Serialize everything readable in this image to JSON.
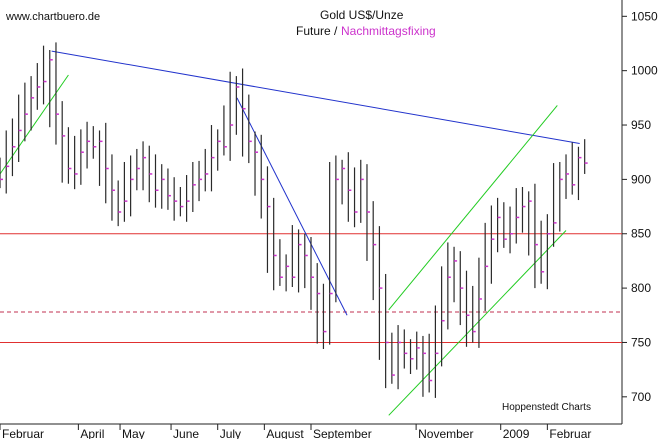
{
  "chart_data": {
    "type": "ohlc",
    "watermark": "www.chartbuero.de",
    "title": "Gold US$/Unze",
    "subtitle_a": "Future /",
    "subtitle_b": "Nachmittagsfixing",
    "credit": "Hoppenstedt Charts",
    "ylim": [
      675,
      1065
    ],
    "yticks": [
      700,
      750,
      800,
      850,
      900,
      950,
      1000,
      1050
    ],
    "xlim": [
      0,
      100
    ],
    "xticks": [
      {
        "x": 0,
        "label": "Februar"
      },
      {
        "x": 12.6,
        "label": "April"
      },
      {
        "x": 19.3,
        "label": "May"
      },
      {
        "x": 27.5,
        "label": "June"
      },
      {
        "x": 35.0,
        "label": "July"
      },
      {
        "x": 42.5,
        "label": "August"
      },
      {
        "x": 50.0,
        "label": "September"
      },
      {
        "x": 66.9,
        "label": "November"
      },
      {
        "x": 80.5,
        "label": "2009"
      },
      {
        "x": 88.0,
        "label": "Februar"
      }
    ],
    "horizontal_lines": [
      {
        "y": 850,
        "style": "solid",
        "color": "#e03030"
      },
      {
        "y": 778,
        "style": "dashed",
        "color": "#c03050"
      },
      {
        "y": 750,
        "style": "solid",
        "color": "#e03030"
      }
    ],
    "trendlines": [
      {
        "color": "#2233cc",
        "points": [
          [
            8.3,
            1018
          ],
          [
            93.2,
            933
          ]
        ]
      },
      {
        "color": "#2233cc",
        "points": [
          [
            38.1,
            975
          ],
          [
            55.8,
            775
          ]
        ]
      },
      {
        "color": "#22cc22",
        "points": [
          [
            0,
            905
          ],
          [
            11.0,
            996
          ]
        ]
      },
      {
        "color": "#22cc22",
        "points": [
          [
            62.5,
            780
          ],
          [
            89.6,
            968
          ]
        ]
      },
      {
        "color": "#22cc22",
        "points": [
          [
            62.5,
            683
          ],
          [
            91.0,
            853
          ]
        ]
      }
    ],
    "bar_color": "#2a2a2a",
    "close_color": "#cc33cc",
    "series": [
      {
        "x": 0,
        "close": 900
      },
      {
        "x": 1,
        "close": 912
      },
      {
        "x": 2,
        "close": 930
      },
      {
        "x": 3,
        "close": 945
      },
      {
        "x": 4,
        "close": 960
      },
      {
        "x": 5,
        "close": 975
      },
      {
        "x": 6,
        "close": 985
      },
      {
        "x": 7,
        "close": 990
      },
      {
        "x": 8,
        "close": 1010
      },
      {
        "x": 9,
        "close": 960
      },
      {
        "x": 10,
        "close": 940
      },
      {
        "x": 11,
        "close": 910
      },
      {
        "x": 12,
        "close": 905
      },
      {
        "x": 13,
        "close": 925
      },
      {
        "x": 14,
        "close": 935
      },
      {
        "x": 15,
        "close": 930
      },
      {
        "x": 16,
        "close": 935
      },
      {
        "x": 17,
        "close": 910
      },
      {
        "x": 18,
        "close": 890
      },
      {
        "x": 19,
        "close": 870
      },
      {
        "x": 20,
        "close": 880
      },
      {
        "x": 21,
        "close": 900
      },
      {
        "x": 22,
        "close": 910
      },
      {
        "x": 23,
        "close": 920
      },
      {
        "x": 24,
        "close": 905
      },
      {
        "x": 25,
        "close": 890
      },
      {
        "x": 26,
        "close": 900
      },
      {
        "x": 27,
        "close": 885
      },
      {
        "x": 28,
        "close": 880
      },
      {
        "x": 29,
        "close": 875
      },
      {
        "x": 30,
        "close": 880
      },
      {
        "x": 31,
        "close": 895
      },
      {
        "x": 32,
        "close": 900
      },
      {
        "x": 33,
        "close": 905
      },
      {
        "x": 34,
        "close": 920
      },
      {
        "x": 35,
        "close": 935
      },
      {
        "x": 36,
        "close": 930
      },
      {
        "x": 37,
        "close": 950
      },
      {
        "x": 38,
        "close": 985
      },
      {
        "x": 39,
        "close": 965
      },
      {
        "x": 40,
        "close": 935
      },
      {
        "x": 41,
        "close": 925
      },
      {
        "x": 42,
        "close": 900
      },
      {
        "x": 43,
        "close": 875
      },
      {
        "x": 44,
        "close": 830
      },
      {
        "x": 45,
        "close": 810
      },
      {
        "x": 46,
        "close": 820
      },
      {
        "x": 47,
        "close": 810
      },
      {
        "x": 48,
        "close": 840
      },
      {
        "x": 49,
        "close": 830
      },
      {
        "x": 50,
        "close": 810
      },
      {
        "x": 51,
        "close": 795
      },
      {
        "x": 52,
        "close": 760
      },
      {
        "x": 53,
        "close": 795
      },
      {
        "x": 54,
        "close": 900
      },
      {
        "x": 55,
        "close": 910
      },
      {
        "x": 56,
        "close": 890
      },
      {
        "x": 57,
        "close": 870
      },
      {
        "x": 58,
        "close": 900
      },
      {
        "x": 59,
        "close": 870
      },
      {
        "x": 60,
        "close": 840
      },
      {
        "x": 61,
        "close": 800
      },
      {
        "x": 62,
        "close": 750
      },
      {
        "x": 63,
        "close": 720
      },
      {
        "x": 64,
        "close": 750
      },
      {
        "x": 65,
        "close": 740
      },
      {
        "x": 66,
        "close": 735
      },
      {
        "x": 67,
        "close": 745
      },
      {
        "x": 68,
        "close": 740
      },
      {
        "x": 69,
        "close": 715
      },
      {
        "x": 70,
        "close": 740
      },
      {
        "x": 71,
        "close": 770
      },
      {
        "x": 72,
        "close": 810
      },
      {
        "x": 73,
        "close": 825
      },
      {
        "x": 74,
        "close": 800
      },
      {
        "x": 75,
        "close": 775
      },
      {
        "x": 76,
        "close": 760
      },
      {
        "x": 77,
        "close": 790
      },
      {
        "x": 78,
        "close": 820
      },
      {
        "x": 79,
        "close": 845
      },
      {
        "x": 80,
        "close": 865
      },
      {
        "x": 81,
        "close": 845
      },
      {
        "x": 82,
        "close": 850
      },
      {
        "x": 83,
        "close": 865
      },
      {
        "x": 84,
        "close": 875
      },
      {
        "x": 85,
        "close": 880
      },
      {
        "x": 86,
        "close": 840
      },
      {
        "x": 87,
        "close": 815
      },
      {
        "x": 88,
        "close": 850
      },
      {
        "x": 89,
        "close": 860
      },
      {
        "x": 90,
        "close": 900
      },
      {
        "x": 91,
        "close": 905
      },
      {
        "x": 92,
        "close": 895
      },
      {
        "x": 93,
        "close": 920
      },
      {
        "x": 94,
        "close": 915
      }
    ]
  }
}
